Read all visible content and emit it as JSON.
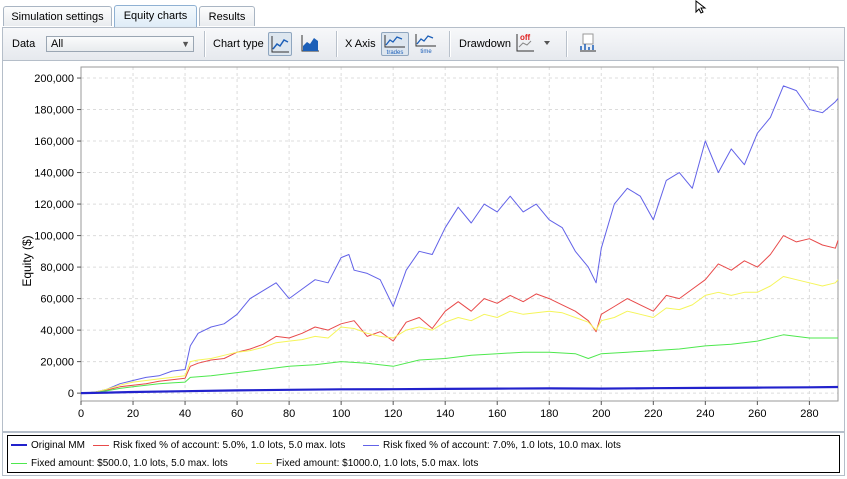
{
  "tabs": [
    {
      "label": "Simulation settings",
      "active": false
    },
    {
      "label": "Equity charts",
      "active": true
    },
    {
      "label": "Results",
      "active": false
    }
  ],
  "toolbar": {
    "data_label": "Data",
    "data_value": "All",
    "chart_type_label": "Chart type",
    "x_axis_label": "X Axis",
    "x_axis_trades": "trades",
    "x_axis_time": "time",
    "drawdown_label": "Drawdown",
    "drawdown_state": "off"
  },
  "chart_data": {
    "type": "line",
    "ylabel": "Equity ($)",
    "xlabel": "",
    "xlim": [
      0,
      291
    ],
    "ylim": [
      -5000,
      207000
    ],
    "xticks": [
      0,
      20,
      40,
      60,
      80,
      100,
      120,
      140,
      160,
      180,
      200,
      220,
      240,
      260,
      280
    ],
    "yticks": [
      0,
      20000,
      40000,
      60000,
      80000,
      100000,
      120000,
      140000,
      160000,
      180000,
      200000
    ],
    "ytick_labels": [
      "0",
      "20,000",
      "40,000",
      "60,000",
      "80,000",
      "100,000",
      "120,000",
      "140,000",
      "160,000",
      "180,000",
      "200,000"
    ],
    "grid": true,
    "legend_position": "bottom",
    "series": [
      {
        "name": "Original MM",
        "color": "#2222cc",
        "width": 2.2,
        "x": [
          0,
          10,
          20,
          40,
          60,
          80,
          100,
          120,
          140,
          160,
          180,
          200,
          220,
          240,
          260,
          280,
          291
        ],
        "y": [
          0,
          300,
          700,
          1200,
          1700,
          2100,
          2400,
          2500,
          2700,
          2900,
          3000,
          2900,
          3100,
          3300,
          3500,
          3700,
          3900
        ]
      },
      {
        "name": "Risk fixed % of account: 5.0%, 1.0 lots, 5.0 max. lots",
        "color": "#e84a4a",
        "width": 1,
        "x": [
          0,
          5,
          10,
          15,
          20,
          25,
          30,
          35,
          40,
          42,
          45,
          50,
          55,
          60,
          65,
          70,
          75,
          80,
          85,
          90,
          95,
          100,
          105,
          110,
          115,
          120,
          125,
          130,
          135,
          140,
          145,
          150,
          155,
          160,
          165,
          170,
          175,
          180,
          185,
          190,
          195,
          198,
          200,
          205,
          210,
          215,
          220,
          225,
          230,
          235,
          240,
          245,
          250,
          255,
          260,
          265,
          270,
          275,
          280,
          285,
          290,
          291
        ],
        "y": [
          0,
          500,
          2000,
          4000,
          5000,
          6000,
          7500,
          8500,
          9500,
          17000,
          19000,
          21000,
          22000,
          26000,
          28000,
          31000,
          36000,
          35000,
          38000,
          42000,
          40000,
          44000,
          46000,
          36000,
          39000,
          33000,
          45000,
          48000,
          41000,
          52000,
          58000,
          52000,
          60000,
          57000,
          62000,
          58000,
          63000,
          60000,
          56000,
          52000,
          46000,
          39000,
          50000,
          55000,
          60000,
          56000,
          52000,
          62000,
          60000,
          66000,
          72000,
          82000,
          78000,
          84000,
          80000,
          88000,
          100000,
          96000,
          98000,
          94000,
          92000,
          97000
        ]
      },
      {
        "name": "Risk fixed % of account: 7.0%, 1.0 lots, 10.0 max. lots",
        "color": "#6262e8",
        "width": 1,
        "x": [
          0,
          5,
          10,
          15,
          20,
          25,
          30,
          35,
          40,
          42,
          45,
          50,
          55,
          60,
          65,
          70,
          75,
          80,
          85,
          90,
          95,
          100,
          103,
          105,
          110,
          115,
          120,
          125,
          130,
          135,
          140,
          145,
          150,
          155,
          160,
          165,
          170,
          175,
          180,
          185,
          190,
          195,
          198,
          200,
          205,
          210,
          215,
          220,
          225,
          230,
          235,
          240,
          245,
          250,
          255,
          260,
          265,
          270,
          275,
          280,
          285,
          290,
          291
        ],
        "y": [
          0,
          500,
          2500,
          6000,
          8000,
          10000,
          11000,
          14000,
          15000,
          30000,
          38000,
          42000,
          44000,
          50000,
          60000,
          65000,
          70000,
          60000,
          66000,
          72000,
          70000,
          86000,
          88000,
          78000,
          76000,
          72000,
          55000,
          78000,
          90000,
          88000,
          105000,
          118000,
          108000,
          120000,
          115000,
          125000,
          115000,
          120000,
          110000,
          105000,
          90000,
          80000,
          70000,
          92000,
          120000,
          130000,
          125000,
          110000,
          135000,
          140000,
          130000,
          160000,
          140000,
          155000,
          145000,
          165000,
          175000,
          195000,
          192000,
          180000,
          178000,
          185000,
          187000
        ]
      },
      {
        "name": "Fixed amount: $500.0, 1.0 lots, 5.0 max. lots",
        "color": "#4ee84e",
        "width": 1,
        "x": [
          0,
          5,
          10,
          15,
          20,
          25,
          30,
          35,
          40,
          42,
          50,
          60,
          70,
          80,
          90,
          100,
          110,
          120,
          130,
          140,
          150,
          160,
          170,
          180,
          190,
          195,
          200,
          210,
          220,
          230,
          240,
          250,
          260,
          270,
          280,
          291
        ],
        "y": [
          0,
          500,
          1500,
          3000,
          4000,
          5000,
          6000,
          6500,
          7000,
          10000,
          11000,
          13000,
          15000,
          17000,
          18000,
          20000,
          19000,
          17000,
          21000,
          22000,
          24000,
          25000,
          26000,
          26000,
          25000,
          22000,
          25000,
          26000,
          27000,
          28000,
          30000,
          31000,
          33000,
          37000,
          35000,
          35000
        ]
      },
      {
        "name": "Fixed amount: $1000.0, 1.0 lots, 5.0 max. lots",
        "color": "#f5f55a",
        "width": 1,
        "x": [
          0,
          5,
          10,
          15,
          20,
          25,
          30,
          35,
          40,
          42,
          45,
          50,
          55,
          60,
          65,
          70,
          75,
          80,
          85,
          90,
          95,
          100,
          105,
          110,
          115,
          120,
          125,
          130,
          135,
          140,
          145,
          150,
          155,
          160,
          165,
          170,
          175,
          180,
          185,
          190,
          195,
          198,
          200,
          205,
          210,
          215,
          220,
          225,
          230,
          235,
          240,
          245,
          250,
          255,
          260,
          265,
          270,
          275,
          280,
          285,
          290,
          291
        ],
        "y": [
          0,
          500,
          2500,
          5000,
          7000,
          8000,
          9000,
          10000,
          11000,
          20000,
          21000,
          22000,
          24000,
          26000,
          27000,
          29000,
          32000,
          33000,
          34000,
          36000,
          35000,
          42000,
          41000,
          38000,
          36000,
          35000,
          40000,
          42000,
          40000,
          45000,
          48000,
          46000,
          50000,
          48000,
          52000,
          50000,
          51000,
          52000,
          51000,
          48000,
          45000,
          40000,
          46000,
          48000,
          52000,
          50000,
          48000,
          54000,
          53000,
          56000,
          62000,
          64000,
          62000,
          64000,
          64000,
          68000,
          74000,
          72000,
          70000,
          68000,
          70000,
          72000
        ]
      }
    ]
  },
  "legend": [
    {
      "label": "Original MM",
      "color": "#2222cc",
      "bold": true
    },
    {
      "label": "Risk fixed % of account: 5.0%, 1.0 lots, 5.0 max. lots",
      "color": "#e84a4a"
    },
    {
      "label": "Risk fixed % of account: 7.0%, 1.0 lots, 10.0 max. lots",
      "color": "#6262e8"
    },
    {
      "label": "Fixed amount: $500.0, 1.0 lots, 5.0 max. lots",
      "color": "#4ee84e"
    },
    {
      "label": "Fixed amount: $1000.0, 1.0 lots, 5.0 max. lots",
      "color": "#f5f55a"
    }
  ],
  "icons": {
    "chart_line": "line-chart-icon",
    "chart_area": "area-chart-icon",
    "x_trades": "trades-axis-icon",
    "x_time": "time-axis-icon",
    "drawdown": "drawdown-icon",
    "export": "chart-export-icon"
  }
}
